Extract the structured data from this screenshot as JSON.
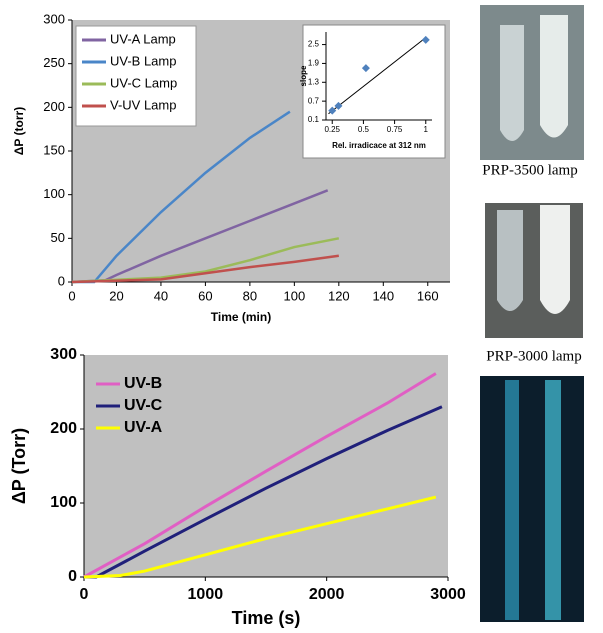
{
  "chart_data": [
    {
      "type": "line",
      "x_label": "Time (min)",
      "y_label": "ΔP (torr)",
      "xlim": [
        0,
        170
      ],
      "xticks": [
        0,
        20,
        40,
        60,
        80,
        100,
        120,
        140,
        160
      ],
      "ylim": [
        0,
        300
      ],
      "yticks": [
        0,
        50,
        100,
        150,
        200,
        250,
        300
      ],
      "legend": "upper left",
      "background": "#c0c0c0",
      "series": [
        {
          "name": "UV-A Lamp",
          "color": "#8064a2",
          "x": [
            0,
            15,
            20,
            40,
            60,
            80,
            100,
            115
          ],
          "values": [
            0,
            2,
            8,
            30,
            50,
            70,
            90,
            105
          ]
        },
        {
          "name": "UV-B Lamp",
          "color": "#4a86c8",
          "x": [
            0,
            10,
            20,
            40,
            60,
            80,
            98
          ],
          "values": [
            0,
            0,
            30,
            80,
            125,
            165,
            195
          ]
        },
        {
          "name": "UV-C Lamp",
          "color": "#9bbb59",
          "x": [
            0,
            40,
            60,
            80,
            100,
            120
          ],
          "values": [
            0,
            5,
            12,
            25,
            40,
            50
          ]
        },
        {
          "name": "V-UV Lamp",
          "color": "#c0504d",
          "x": [
            0,
            40,
            60,
            80,
            100,
            120
          ],
          "values": [
            0,
            3,
            10,
            17,
            23,
            30
          ]
        }
      ]
    },
    {
      "type": "line",
      "x_label": "Time (s)",
      "y_label": "ΔP (Torr)",
      "xlim": [
        0,
        3000
      ],
      "xticks": [
        0,
        1000,
        2000,
        3000
      ],
      "ylim": [
        0,
        300
      ],
      "yticks": [
        0,
        100,
        200,
        300
      ],
      "legend": "upper left",
      "background": "#c0c0c0",
      "series": [
        {
          "name": "UV-B",
          "color": "#e05fc4",
          "x": [
            0,
            500,
            1000,
            1500,
            2000,
            2500,
            2900
          ],
          "values": [
            0,
            45,
            95,
            143,
            190,
            235,
            275
          ]
        },
        {
          "name": "UV-C",
          "color": "#20207a",
          "x": [
            0,
            100,
            500,
            1000,
            1500,
            2000,
            2500,
            2950
          ],
          "values": [
            0,
            0,
            35,
            78,
            120,
            160,
            198,
            230
          ]
        },
        {
          "name": "UV-A",
          "color": "#ffff00",
          "x": [
            0,
            300,
            500,
            1000,
            1500,
            2000,
            2500,
            2900
          ],
          "values": [
            0,
            2,
            8,
            30,
            52,
            72,
            92,
            108
          ]
        }
      ]
    },
    {
      "type": "scatter",
      "x_label": "Rel. irradicace at 312 nm",
      "y_label": "slope",
      "xlim": [
        0.2,
        1.05
      ],
      "xticks": [
        0.25,
        0.5,
        0.75,
        1
      ],
      "ylim": [
        0.1,
        2.9
      ],
      "yticks": [
        0.1,
        0.7,
        1.3,
        1.9,
        2.5
      ],
      "color": "#4f81bd",
      "x": [
        0.25,
        0.3,
        0.52,
        1
      ],
      "values": [
        0.4,
        0.55,
        1.75,
        2.65
      ],
      "trendline": {
        "x": [
          0.22,
          1
        ],
        "y": [
          0.3,
          2.72
        ]
      }
    }
  ],
  "captions": [
    "PRP-3500 lamp",
    "PRP-3000 lamp"
  ]
}
